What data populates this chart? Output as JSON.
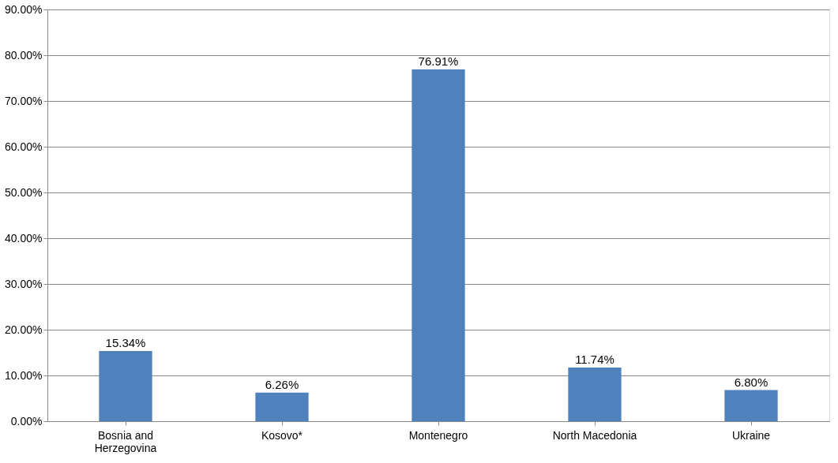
{
  "chart_data": {
    "type": "bar",
    "categories": [
      "Bosnia and Herzegovina",
      "Kosovo*",
      "Montenegro",
      "North Macedonia",
      "Ukraine"
    ],
    "values": [
      15.34,
      6.26,
      76.91,
      11.74,
      6.8
    ],
    "value_labels": [
      "15.34%",
      "6.26%",
      "76.91%",
      "11.74%",
      "6.80%"
    ],
    "color": "#4f81bd",
    "ylim": [
      0,
      90
    ],
    "yticks": [
      {
        "value": 0,
        "label": "0.00%"
      },
      {
        "value": 10,
        "label": "10.00%"
      },
      {
        "value": 20,
        "label": "20.00%"
      },
      {
        "value": 30,
        "label": "30.00%"
      },
      {
        "value": 40,
        "label": "40.00%"
      },
      {
        "value": 50,
        "label": "50.00%"
      },
      {
        "value": 60,
        "label": "60.00%"
      },
      {
        "value": 70,
        "label": "70.00%"
      },
      {
        "value": 80,
        "label": "80.00%"
      },
      {
        "value": 90,
        "label": "90.00%"
      }
    ],
    "grid": "y"
  }
}
